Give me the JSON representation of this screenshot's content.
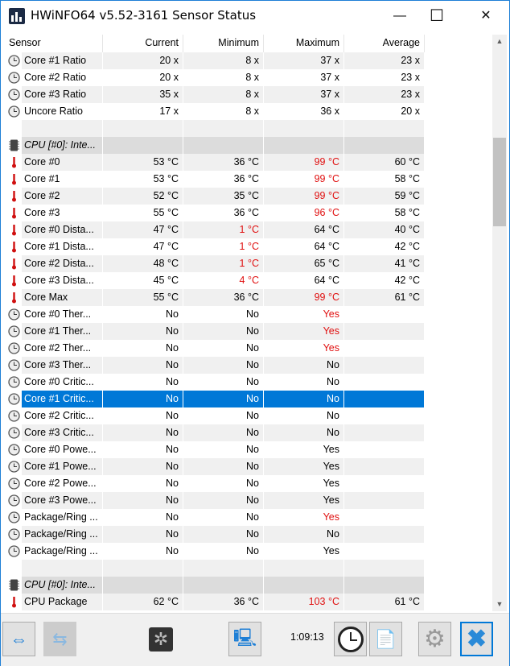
{
  "window": {
    "title": "HWiNFO64 v5.52-3161 Sensor Status",
    "minimize": "—",
    "maximize": "☐",
    "close": "✕"
  },
  "columns": [
    "Sensor",
    "Current",
    "Minimum",
    "Maximum",
    "Average"
  ],
  "colors": {
    "alert": "#e01010",
    "selected": "#0078d7",
    "group": "#dcdcdc"
  },
  "rows": [
    {
      "icon": "clock",
      "sensor": "Core #1 Ratio",
      "current": "20 x",
      "minimum": "8 x",
      "maximum": "37 x",
      "average": "23 x"
    },
    {
      "icon": "clock",
      "sensor": "Core #2 Ratio",
      "current": "20 x",
      "minimum": "8 x",
      "maximum": "37 x",
      "average": "23 x"
    },
    {
      "icon": "clock",
      "sensor": "Core #3 Ratio",
      "current": "35 x",
      "minimum": "8 x",
      "maximum": "37 x",
      "average": "23 x"
    },
    {
      "icon": "clock",
      "sensor": "Uncore Ratio",
      "current": "17 x",
      "minimum": "8 x",
      "maximum": "36 x",
      "average": "20 x"
    },
    {
      "icon": "",
      "sensor": "",
      "current": "",
      "minimum": "",
      "maximum": "",
      "average": ""
    },
    {
      "icon": "chip",
      "group": true,
      "sensor": "CPU [#0]: Inte...",
      "current": "",
      "minimum": "",
      "maximum": "",
      "average": ""
    },
    {
      "icon": "thermometer",
      "sensor": "Core #0",
      "current": "53 °C",
      "minimum": "36 °C",
      "maximum": "99 °C",
      "average": "60 °C",
      "red": [
        "maximum"
      ]
    },
    {
      "icon": "thermometer",
      "sensor": "Core #1",
      "current": "53 °C",
      "minimum": "36 °C",
      "maximum": "99 °C",
      "average": "58 °C",
      "red": [
        "maximum"
      ]
    },
    {
      "icon": "thermometer",
      "sensor": "Core #2",
      "current": "52 °C",
      "minimum": "35 °C",
      "maximum": "99 °C",
      "average": "59 °C",
      "red": [
        "maximum"
      ]
    },
    {
      "icon": "thermometer",
      "sensor": "Core #3",
      "current": "55 °C",
      "minimum": "36 °C",
      "maximum": "96 °C",
      "average": "58 °C",
      "red": [
        "maximum"
      ]
    },
    {
      "icon": "thermometer",
      "sensor": "Core #0 Dista...",
      "current": "47 °C",
      "minimum": "1 °C",
      "maximum": "64 °C",
      "average": "40 °C",
      "red": [
        "minimum"
      ]
    },
    {
      "icon": "thermometer",
      "sensor": "Core #1 Dista...",
      "current": "47 °C",
      "minimum": "1 °C",
      "maximum": "64 °C",
      "average": "42 °C",
      "red": [
        "minimum"
      ]
    },
    {
      "icon": "thermometer",
      "sensor": "Core #2 Dista...",
      "current": "48 °C",
      "minimum": "1 °C",
      "maximum": "65 °C",
      "average": "41 °C",
      "red": [
        "minimum"
      ]
    },
    {
      "icon": "thermometer",
      "sensor": "Core #3 Dista...",
      "current": "45 °C",
      "minimum": "4 °C",
      "maximum": "64 °C",
      "average": "42 °C",
      "red": [
        "minimum"
      ]
    },
    {
      "icon": "thermometer",
      "sensor": "Core Max",
      "current": "55 °C",
      "minimum": "36 °C",
      "maximum": "99 °C",
      "average": "61 °C",
      "red": [
        "maximum"
      ]
    },
    {
      "icon": "clock",
      "sensor": "Core #0 Ther...",
      "current": "No",
      "minimum": "No",
      "maximum": "Yes",
      "average": "",
      "red": [
        "maximum"
      ]
    },
    {
      "icon": "clock",
      "sensor": "Core #1 Ther...",
      "current": "No",
      "minimum": "No",
      "maximum": "Yes",
      "average": "",
      "red": [
        "maximum"
      ]
    },
    {
      "icon": "clock",
      "sensor": "Core #2 Ther...",
      "current": "No",
      "minimum": "No",
      "maximum": "Yes",
      "average": "",
      "red": [
        "maximum"
      ]
    },
    {
      "icon": "clock",
      "sensor": "Core #3 Ther...",
      "current": "No",
      "minimum": "No",
      "maximum": "No",
      "average": ""
    },
    {
      "icon": "clock",
      "sensor": "Core #0 Critic...",
      "current": "No",
      "minimum": "No",
      "maximum": "No",
      "average": ""
    },
    {
      "icon": "clock",
      "sensor": "Core #1 Critic...",
      "current": "No",
      "minimum": "No",
      "maximum": "No",
      "average": "",
      "selected": true
    },
    {
      "icon": "clock",
      "sensor": "Core #2 Critic...",
      "current": "No",
      "minimum": "No",
      "maximum": "No",
      "average": ""
    },
    {
      "icon": "clock",
      "sensor": "Core #3 Critic...",
      "current": "No",
      "minimum": "No",
      "maximum": "No",
      "average": ""
    },
    {
      "icon": "clock",
      "sensor": "Core #0 Powe...",
      "current": "No",
      "minimum": "No",
      "maximum": "Yes",
      "average": ""
    },
    {
      "icon": "clock",
      "sensor": "Core #1 Powe...",
      "current": "No",
      "minimum": "No",
      "maximum": "Yes",
      "average": ""
    },
    {
      "icon": "clock",
      "sensor": "Core #2 Powe...",
      "current": "No",
      "minimum": "No",
      "maximum": "Yes",
      "average": ""
    },
    {
      "icon": "clock",
      "sensor": "Core #3 Powe...",
      "current": "No",
      "minimum": "No",
      "maximum": "Yes",
      "average": ""
    },
    {
      "icon": "clock",
      "sensor": "Package/Ring ...",
      "current": "No",
      "minimum": "No",
      "maximum": "Yes",
      "average": "",
      "red": [
        "maximum"
      ]
    },
    {
      "icon": "clock",
      "sensor": "Package/Ring ...",
      "current": "No",
      "minimum": "No",
      "maximum": "No",
      "average": ""
    },
    {
      "icon": "clock",
      "sensor": "Package/Ring ...",
      "current": "No",
      "minimum": "No",
      "maximum": "Yes",
      "average": ""
    },
    {
      "icon": "",
      "sensor": "",
      "current": "",
      "minimum": "",
      "maximum": "",
      "average": ""
    },
    {
      "icon": "chip",
      "group": true,
      "sensor": "CPU [#0]: Inte...",
      "current": "",
      "minimum": "",
      "maximum": "",
      "average": ""
    },
    {
      "icon": "thermometer",
      "sensor": "CPU Package",
      "current": "62 °C",
      "minimum": "36 °C",
      "maximum": "103 °C",
      "average": "61 °C",
      "red": [
        "maximum"
      ]
    }
  ],
  "toolbar": {
    "elapsed": "1:09:13"
  }
}
